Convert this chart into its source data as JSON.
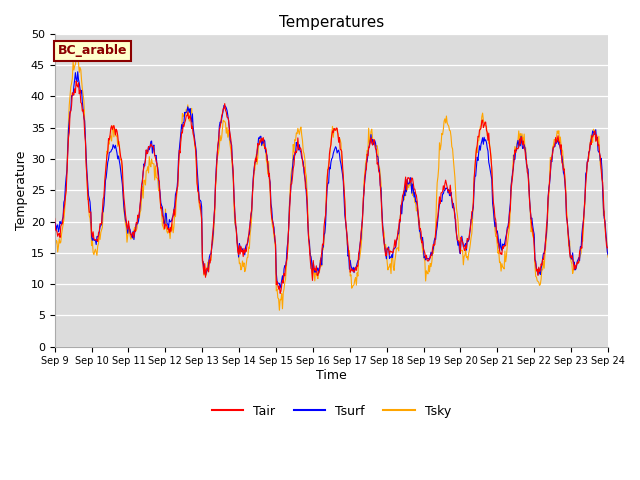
{
  "title": "Temperatures",
  "xlabel": "Time",
  "ylabel": "Temperature",
  "ylim": [
    0,
    50
  ],
  "yticks": [
    0,
    5,
    10,
    15,
    20,
    25,
    30,
    35,
    40,
    45,
    50
  ],
  "xtick_labels": [
    "Sep 9",
    "Sep 10",
    "Sep 11",
    "Sep 12",
    "Sep 13",
    "Sep 14",
    "Sep 15",
    "Sep 16",
    "Sep 17",
    "Sep 18",
    "Sep 19",
    "Sep 20",
    "Sep 21",
    "Sep 22",
    "Sep 23",
    "Sep 24"
  ],
  "annotation_text": "BC_arable",
  "annotation_color": "#8B0000",
  "annotation_bg": "#ffffcc",
  "line_Tair": "#FF0000",
  "line_Tsurf": "#0000FF",
  "line_Tsky": "#FFA500",
  "bg_color": "#DCDCDC",
  "legend_labels": [
    "Tair",
    "Tsurf",
    "Tsky"
  ],
  "figsize": [
    6.4,
    4.8
  ],
  "dpi": 100,
  "n_days": 15,
  "pts_per_day": 48,
  "daily_peaks": [
    42,
    35,
    32,
    37,
    38,
    33,
    32,
    35,
    33,
    27,
    26,
    36,
    33,
    33,
    34
  ],
  "daily_mins": [
    18,
    17,
    18,
    19,
    12,
    15,
    9,
    12,
    12,
    15,
    14,
    16,
    15,
    12,
    13
  ],
  "sky_daily_peaks": [
    46,
    35,
    29,
    38,
    36,
    33,
    35,
    35,
    34,
    26,
    36,
    36,
    34,
    34,
    34
  ],
  "sky_daily_mins": [
    16,
    15,
    18,
    18,
    12,
    14,
    9,
    12,
    12,
    14,
    14,
    15,
    15,
    11,
    13
  ],
  "tsurf_daily_peaks": [
    43,
    32,
    32,
    38,
    38,
    33,
    32,
    32,
    33,
    26,
    25,
    33,
    33,
    33,
    34
  ],
  "tsurf_daily_mins": [
    19,
    17,
    18,
    20,
    12,
    15,
    10,
    12,
    12,
    15,
    14,
    16,
    16,
    12,
    13
  ]
}
